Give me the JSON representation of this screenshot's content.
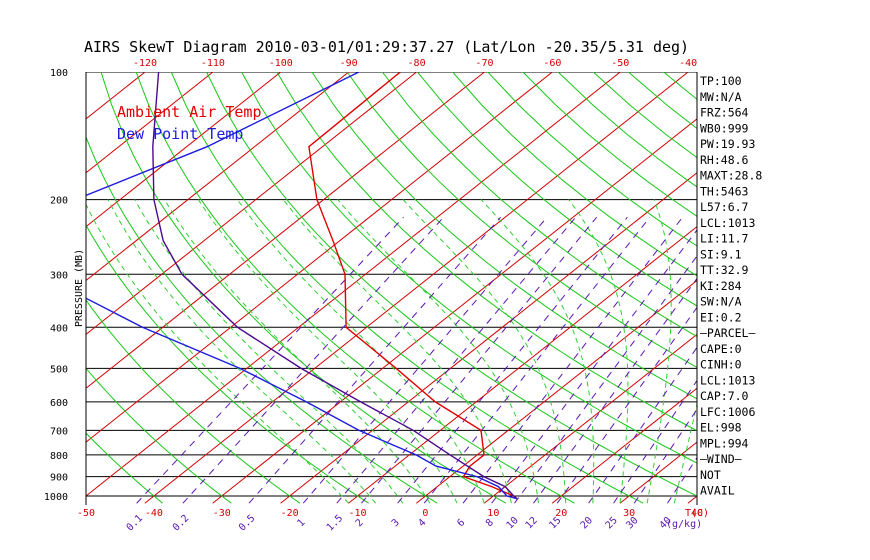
{
  "chart_data": {
    "type": "skewt",
    "title": "AIRS SkewT Diagram 2010-03-01/01:29:37.27 (Lat/Lon -20.35/5.31 deg)",
    "ylabel": "PRESSURE (MB)",
    "x_unit_label": "T(C)",
    "mixing_ratio_unit_label": "(g/kg)",
    "pressure_ticks": [
      100,
      200,
      300,
      400,
      500,
      600,
      700,
      800,
      900,
      1000
    ],
    "pressure_range": [
      100,
      1040
    ],
    "temp_range_bottom": [
      -50,
      40
    ],
    "top_temp_labels": [
      -120,
      -110,
      -100,
      -90,
      -80,
      -70,
      -60,
      -50,
      -40
    ],
    "bottom_temp_labels": [
      -50,
      -40,
      -30,
      -20,
      -10,
      0,
      10,
      20,
      30,
      40
    ],
    "mixing_ratio_labels": [
      "0.1",
      "0.2",
      "0.5",
      "1",
      "1.5",
      "2",
      "3",
      "4",
      "6",
      "8",
      "10",
      "12",
      "15",
      "20",
      "25",
      "30",
      "40"
    ],
    "legend": [
      {
        "label": "Ambient Air Temp",
        "color": "#e00000"
      },
      {
        "label": "Dew Point Temp",
        "color": "#1c1ce0"
      }
    ],
    "colors": {
      "isotherm": "#d60000",
      "dry_adiabat": "#18c818",
      "moist_adiabat": "#30d030",
      "mixing_ratio": "#5a16b4",
      "parcel": "#4a0a90"
    },
    "series": [
      {
        "name": "Ambient Air Temp",
        "color": "#e00000",
        "points": [
          [
            100,
            -82.4
          ],
          [
            150,
            -82
          ],
          [
            200,
            -71
          ],
          [
            250,
            -61
          ],
          [
            300,
            -53
          ],
          [
            400,
            -43
          ],
          [
            500,
            -28
          ],
          [
            600,
            -16
          ],
          [
            700,
            -4
          ],
          [
            800,
            1
          ],
          [
            850,
            1
          ],
          [
            900,
            2
          ],
          [
            950,
            8
          ],
          [
            1000,
            13
          ],
          [
            1015,
            14
          ]
        ]
      },
      {
        "name": "Dew Point Temp",
        "color": "#1c1ce0",
        "points": [
          [
            100,
            -88.5
          ],
          [
            150,
            -97
          ],
          [
            250,
            -114
          ],
          [
            300,
            -98
          ],
          [
            400,
            -73
          ],
          [
            500,
            -51
          ],
          [
            600,
            -35
          ],
          [
            700,
            -22
          ],
          [
            800,
            -9
          ],
          [
            850,
            -4
          ],
          [
            900,
            4
          ],
          [
            950,
            9
          ],
          [
            1000,
            12
          ],
          [
            1015,
            14
          ]
        ]
      },
      {
        "name": "Parcel",
        "color": "#4a0a90",
        "points": [
          [
            100,
            -118
          ],
          [
            150,
            -105
          ],
          [
            200,
            -95
          ],
          [
            250,
            -86
          ],
          [
            300,
            -77
          ],
          [
            400,
            -59
          ],
          [
            500,
            -42
          ],
          [
            600,
            -27
          ],
          [
            700,
            -14
          ],
          [
            800,
            -4
          ],
          [
            900,
            5
          ],
          [
            950,
            10
          ],
          [
            1000,
            13
          ],
          [
            1015,
            14
          ]
        ]
      }
    ]
  },
  "indices": [
    "TP:100",
    "MW:N/A",
    "FRZ:564",
    "WB0:999",
    "PW:19.93",
    "RH:48.6",
    "MAXT:28.8",
    "TH:5463",
    "L57:6.7",
    "LCL:1013",
    "LI:11.7",
    "SI:9.1",
    "TT:32.9",
    "KI:284",
    "SW:N/A",
    "EI:0.2",
    "—PARCEL—",
    "CAPE:0",
    "CINH:0",
    "LCL:1013",
    "CAP:7.0",
    "LFC:1006",
    "EL:998",
    "MPL:994",
    "—WIND—",
    "NOT",
    "AVAIL"
  ]
}
